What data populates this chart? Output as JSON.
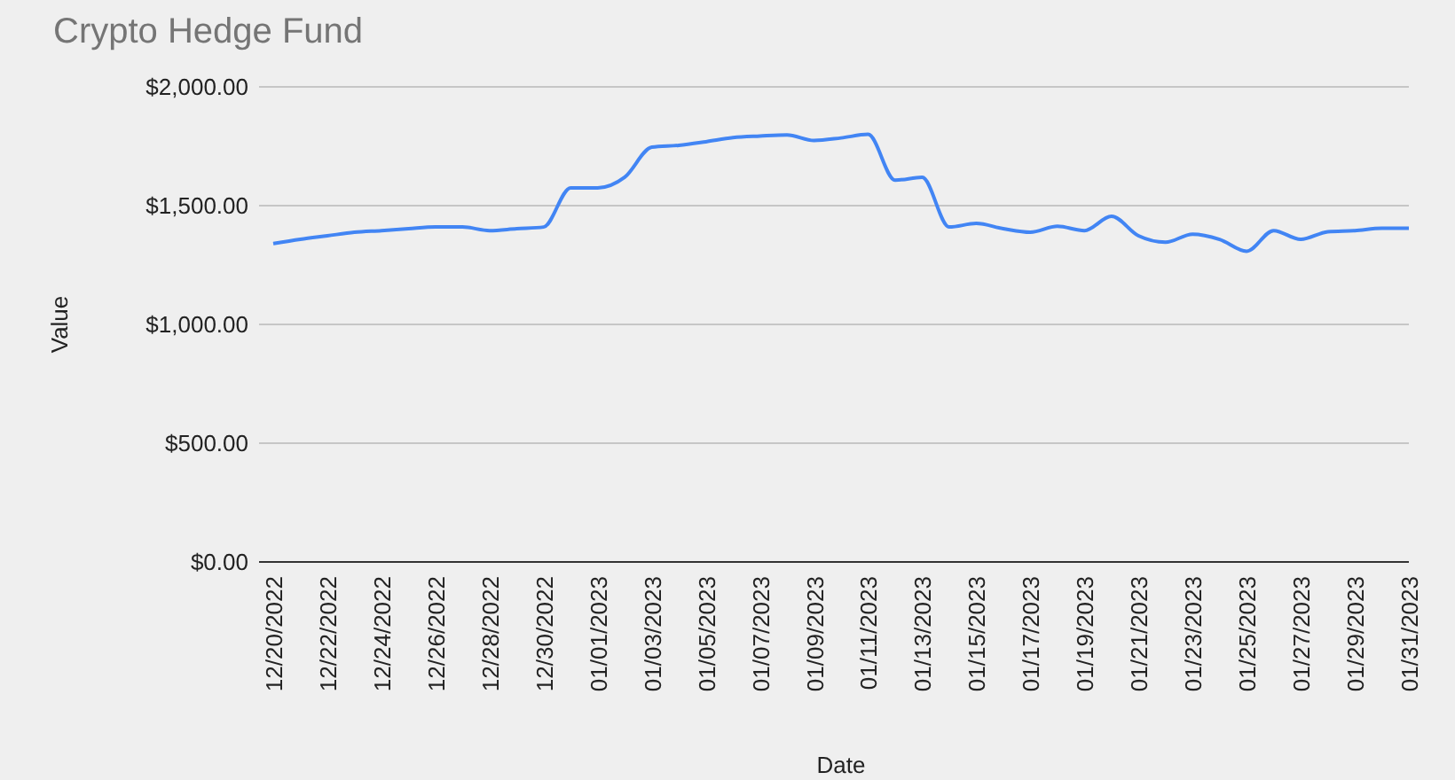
{
  "chart_data": {
    "type": "line",
    "title": "Crypto Hedge Fund",
    "xlabel": "Date",
    "ylabel": "Value",
    "categories": [
      "12/20/2022",
      null,
      "12/22/2022",
      null,
      "12/24/2022",
      null,
      "12/26/2022",
      null,
      "12/28/2022",
      null,
      "12/30/2022",
      null,
      "01/01/2023",
      null,
      "01/03/2023",
      null,
      "01/05/2023",
      null,
      "01/07/2023",
      null,
      "01/09/2023",
      null,
      "01/11/2023",
      null,
      "01/13/2023",
      null,
      "01/15/2023",
      null,
      "01/17/2023",
      null,
      "01/19/2023",
      null,
      "01/21/2023",
      null,
      "01/23/2023",
      null,
      "01/25/2023",
      null,
      "01/27/2023",
      null,
      "01/29/2023",
      null,
      "01/31/2023"
    ],
    "series": [
      {
        "color": "#4285f4",
        "values": [
          1340,
          1358,
          1373,
          1388,
          1395,
          1403,
          1410,
          1410,
          1395,
          1403,
          1410,
          1575,
          1575,
          1620,
          1746,
          1754,
          1769,
          1786,
          1793,
          1798,
          1774,
          1785,
          1800,
          1607,
          1619,
          1410,
          1425,
          1403,
          1388,
          1413,
          1395,
          1455,
          1373,
          1346,
          1380,
          1358,
          1308,
          1395,
          1358,
          1390,
          1395,
          1405,
          1405
        ]
      }
    ],
    "ylim": [
      0,
      2000
    ],
    "yticks": [
      {
        "value": 0,
        "label": "$0.00"
      },
      {
        "value": 500,
        "label": "$500.00"
      },
      {
        "value": 1000,
        "label": "$1,000.00"
      },
      {
        "value": 1500,
        "label": "$1,500.00"
      },
      {
        "value": 2000,
        "label": "$2,000.00"
      }
    ],
    "grid": "y",
    "marker": "none",
    "line_style": "solid"
  }
}
